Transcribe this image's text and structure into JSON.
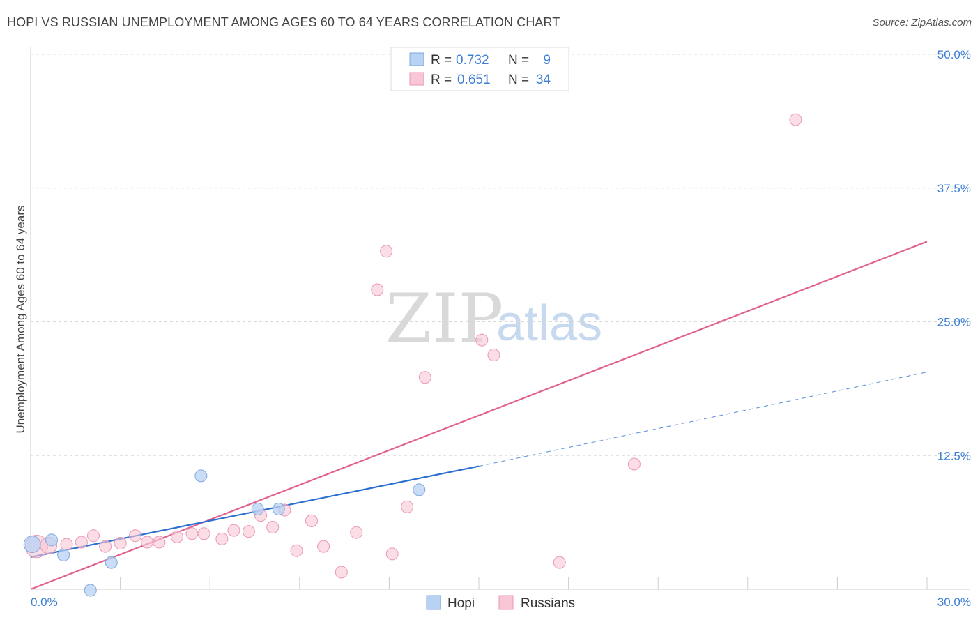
{
  "title": "HOPI VS RUSSIAN UNEMPLOYMENT AMONG AGES 60 TO 64 YEARS CORRELATION CHART",
  "source": "Source: ZipAtlas.com",
  "watermark": {
    "zip": "ZIP",
    "atlas": "atlas"
  },
  "colors": {
    "hopi_fill": "#b8d2f3",
    "hopi_stroke": "#7ea9dd",
    "hopi_line": "#2b6fd0",
    "russian_fill": "#f9c6d6",
    "russian_stroke": "#eb97b4",
    "russian_line": "#e2628f",
    "accent": "#3d7fd6",
    "grid": "#d8d8d8"
  },
  "legend": {
    "hopi": {
      "r_label": "R = ",
      "r_value": "0.732",
      "n_label": "N = ",
      "n_value": "9"
    },
    "russian": {
      "r_label": "R = ",
      "r_value": "0.651",
      "n_label": "N = ",
      "n_value": "34"
    }
  },
  "chart_data": {
    "type": "scatter",
    "title": "HOPI VS RUSSIAN UNEMPLOYMENT AMONG AGES 60 TO 64 YEARS CORRELATION CHART",
    "xlabel": "",
    "ylabel": "Unemployment Among Ages 60 to 64 years",
    "xlim": [
      0,
      30
    ],
    "ylim": [
      0,
      50
    ],
    "x_tick_labels": [
      "0.0%",
      "30.0%"
    ],
    "y_ticks": [
      12.5,
      25.0,
      37.5,
      50.0
    ],
    "y_tick_labels": [
      "12.5%",
      "25.0%",
      "37.5%",
      "50.0%"
    ],
    "grid": true,
    "legend_position": "top-center",
    "series": [
      {
        "name": "Hopi",
        "points": [
          {
            "x": 0.05,
            "y": 4.2,
            "s": 1.4
          },
          {
            "x": 0.7,
            "y": 4.6,
            "s": 1.0
          },
          {
            "x": 1.1,
            "y": 3.2,
            "s": 1.0
          },
          {
            "x": 2.7,
            "y": 2.5,
            "s": 1.0
          },
          {
            "x": 2.0,
            "y": -0.1,
            "s": 1.0
          },
          {
            "x": 5.7,
            "y": 10.6,
            "s": 1.0
          },
          {
            "x": 7.6,
            "y": 7.5,
            "s": 1.0
          },
          {
            "x": 8.3,
            "y": 7.5,
            "s": 1.0
          },
          {
            "x": 13.0,
            "y": 9.3,
            "s": 1.0
          }
        ],
        "trend": {
          "x": [
            0,
            15
          ],
          "y": [
            3.0,
            11.5
          ],
          "extended": {
            "x": [
              15,
              30
            ],
            "y": [
              11.5,
              20.3
            ]
          }
        }
      },
      {
        "name": "Russians",
        "points": [
          {
            "x": 0.2,
            "y": 4.0,
            "s": 1.9
          },
          {
            "x": 0.6,
            "y": 4.1,
            "s": 1.4
          },
          {
            "x": 1.2,
            "y": 4.2,
            "s": 1.0
          },
          {
            "x": 1.7,
            "y": 4.4,
            "s": 1.0
          },
          {
            "x": 2.1,
            "y": 5.0,
            "s": 1.0
          },
          {
            "x": 2.5,
            "y": 4.0,
            "s": 1.0
          },
          {
            "x": 3.0,
            "y": 4.3,
            "s": 1.0
          },
          {
            "x": 3.5,
            "y": 5.0,
            "s": 1.0
          },
          {
            "x": 3.9,
            "y": 4.4,
            "s": 1.0
          },
          {
            "x": 4.3,
            "y": 4.4,
            "s": 1.0
          },
          {
            "x": 4.9,
            "y": 4.9,
            "s": 1.0
          },
          {
            "x": 5.4,
            "y": 5.2,
            "s": 1.0
          },
          {
            "x": 5.8,
            "y": 5.2,
            "s": 1.0
          },
          {
            "x": 6.4,
            "y": 4.7,
            "s": 1.0
          },
          {
            "x": 6.8,
            "y": 5.5,
            "s": 1.0
          },
          {
            "x": 7.3,
            "y": 5.4,
            "s": 1.0
          },
          {
            "x": 7.7,
            "y": 6.9,
            "s": 1.0
          },
          {
            "x": 8.1,
            "y": 5.8,
            "s": 1.0
          },
          {
            "x": 8.5,
            "y": 7.4,
            "s": 1.0
          },
          {
            "x": 8.9,
            "y": 3.6,
            "s": 1.0
          },
          {
            "x": 9.4,
            "y": 6.4,
            "s": 1.0
          },
          {
            "x": 9.8,
            "y": 4.0,
            "s": 1.0
          },
          {
            "x": 10.4,
            "y": 1.6,
            "s": 1.0
          },
          {
            "x": 10.9,
            "y": 5.3,
            "s": 1.0
          },
          {
            "x": 11.6,
            "y": 28.0,
            "s": 1.0
          },
          {
            "x": 11.9,
            "y": 31.6,
            "s": 1.0
          },
          {
            "x": 12.1,
            "y": 3.3,
            "s": 1.0
          },
          {
            "x": 12.6,
            "y": 7.7,
            "s": 1.0
          },
          {
            "x": 13.2,
            "y": 19.8,
            "s": 1.0
          },
          {
            "x": 15.1,
            "y": 23.3,
            "s": 1.0
          },
          {
            "x": 15.5,
            "y": 21.9,
            "s": 1.0
          },
          {
            "x": 17.7,
            "y": 2.5,
            "s": 1.0
          },
          {
            "x": 20.2,
            "y": 11.7,
            "s": 1.0
          },
          {
            "x": 25.6,
            "y": 43.9,
            "s": 1.0
          }
        ],
        "trend": {
          "x": [
            0,
            30
          ],
          "y": [
            0,
            32.5
          ]
        }
      }
    ]
  }
}
